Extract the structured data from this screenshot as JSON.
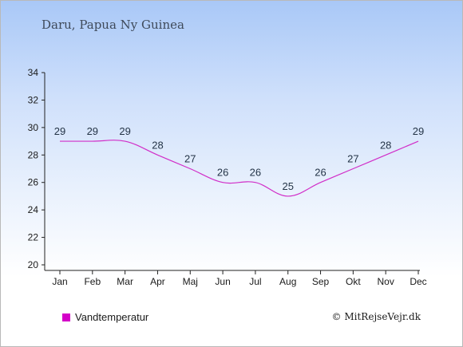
{
  "header": {
    "location": "Daru, Papua Ny Guinea"
  },
  "legend": {
    "label": "Vandtemperatur"
  },
  "footer": {
    "copyright": "© MitRejseVejr.dk"
  },
  "colors": {
    "line": "#d12ec8",
    "axis": "#222222",
    "text": "#243447",
    "legend_swatch": "#d400c8"
  },
  "chart_data": {
    "type": "line",
    "categories": [
      "Jan",
      "Feb",
      "Mar",
      "Apr",
      "Maj",
      "Jun",
      "Jul",
      "Aug",
      "Sep",
      "Okt",
      "Nov",
      "Dec"
    ],
    "series": [
      {
        "name": "Vandtemperatur",
        "values": [
          29,
          29,
          29,
          28,
          27,
          26,
          26,
          25,
          26,
          27,
          28,
          29
        ]
      }
    ],
    "ylim": [
      20,
      34
    ],
    "yticks": [
      20,
      22,
      24,
      26,
      28,
      30,
      32,
      34
    ],
    "grid": false,
    "legend_position": "bottom-left"
  }
}
